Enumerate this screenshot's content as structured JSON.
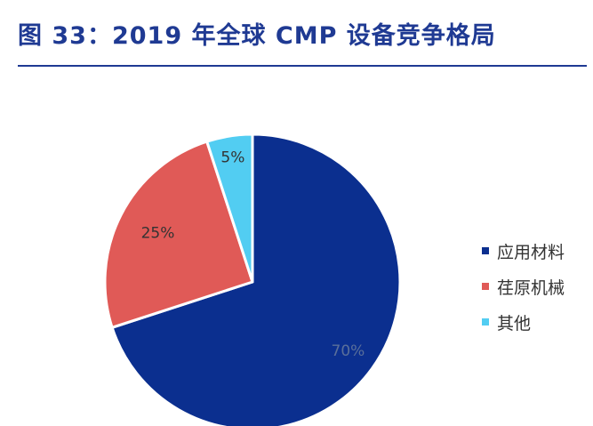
{
  "figure": {
    "title": "图 33：2019 年全球 CMP 设备竞争格局"
  },
  "chart_data": {
    "type": "pie",
    "title": "",
    "start": "12 o'clock",
    "direction": "clockwise",
    "slices": [
      {
        "name": "应用材料",
        "value": 70,
        "label": "70%",
        "color": "#0b2f8f",
        "label_color": "#5a6f9a"
      },
      {
        "name": "荏原机械",
        "value": 25,
        "label": "25%",
        "color": "#e05a57",
        "label_color": "#333333"
      },
      {
        "name": "其他",
        "value": 5,
        "label": "5%",
        "color": "#52cdf2",
        "label_color": "#333333"
      }
    ],
    "legend": {
      "placement": "right",
      "entries": [
        "应用材料",
        "荏原机械",
        "其他"
      ]
    }
  }
}
